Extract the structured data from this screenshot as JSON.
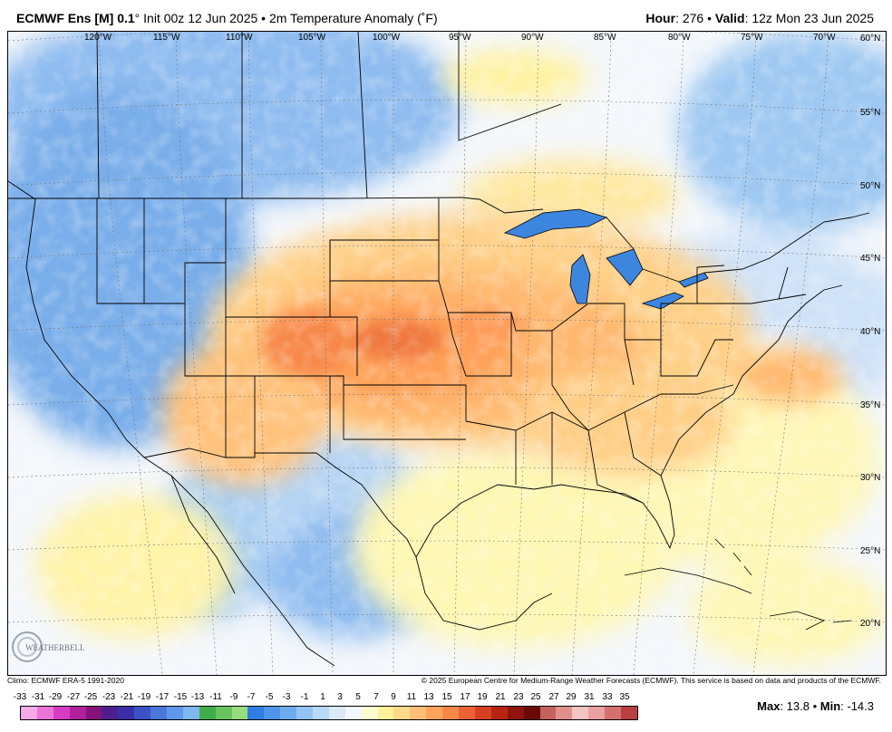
{
  "header": {
    "model": "ECMWF Ens [M] 0.1",
    "degree": "°",
    "init": " Init 00z 12 Jun 2025 • 2m Temperature Anomaly (˚F)",
    "hour_label": "Hour",
    "hour_value": ": 276 • ",
    "valid_label": "Valid",
    "valid_value": ": 12z Mon 23 Jun 2025"
  },
  "map": {
    "longitudes": [
      "120°W",
      "115°W",
      "110°W",
      "105°W",
      "100°W",
      "95°W",
      "90°W",
      "85°W",
      "80°W",
      "75°W",
      "70°W"
    ],
    "latitudes": [
      "60°N",
      "55°N",
      "50°N",
      "45°N",
      "40°N",
      "35°N",
      "30°N",
      "25°N",
      "20°N"
    ],
    "logo_text": "WEATHERBELL"
  },
  "footer": {
    "climo": "Climo: ECMWF ERA-5 1991-2020",
    "copyright": "© 2025 European Centre for Medium-Range Weather Forecasts (ECMWF). This service is based on data and products of the ECMWF."
  },
  "colorbar": {
    "labels": [
      "-33",
      "-31",
      "-29",
      "-27",
      "-25",
      "-23",
      "-21",
      "-19",
      "-17",
      "-15",
      "-13",
      "-11",
      "-9",
      "-7",
      "-5",
      "-3",
      "-1",
      "1",
      "3",
      "5",
      "7",
      "9",
      "11",
      "13",
      "15",
      "17",
      "19",
      "21",
      "23",
      "25",
      "27",
      "29",
      "31",
      "33",
      "35"
    ],
    "colors": [
      "#f7a8e8",
      "#ec74d8",
      "#d83cc4",
      "#b0209c",
      "#86137a",
      "#4f1e8e",
      "#3a2ea6",
      "#3a52c6",
      "#4a76dc",
      "#5f98ea",
      "#7fb8f0",
      "#3fae4a",
      "#68c45c",
      "#98dc80",
      "#2f7ee0",
      "#4d96ea",
      "#6eacf0",
      "#92c4f4",
      "#b8d8f8",
      "#dceaf8",
      "#f4f8fc",
      "#fffbd0",
      "#fff09a",
      "#ffd98a",
      "#ffbf78",
      "#ffa45e",
      "#f88848",
      "#ec6234",
      "#d6401e",
      "#b82412",
      "#8e140c",
      "#6a0a08",
      "#c4625e",
      "#e0908c",
      "#f3c4c4",
      "#e8a0a0",
      "#d47070",
      "#b84040"
    ],
    "max_label": "Max",
    "max_value": ": 13.8 • ",
    "min_label": "Min",
    "min_value": ": -14.3"
  }
}
